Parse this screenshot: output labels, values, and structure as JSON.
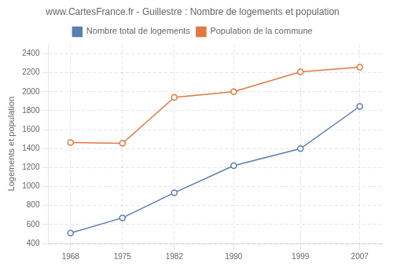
{
  "chart_data": {
    "type": "line",
    "title": "www.CartesFrance.fr - Guillestre : Nombre de logements et population",
    "y_label": "Logements et population",
    "x": [
      1968,
      1975,
      1982,
      1990,
      1999,
      2007
    ],
    "series": [
      {
        "name": "Nombre total de logements",
        "color": "#5b7db1",
        "marker": "circle",
        "values": [
          510,
          670,
          935,
          1220,
          1400,
          1845
        ]
      },
      {
        "name": "Population de la commune",
        "color": "#e07840",
        "marker": "circle",
        "values": [
          1465,
          1455,
          1940,
          2000,
          2210,
          2260
        ]
      }
    ],
    "xlim": [
      1965,
      2010
    ],
    "xticks": [
      1968,
      1975,
      1982,
      1990,
      1999,
      2007
    ],
    "ylim": [
      400,
      2500
    ],
    "yticks": [
      400,
      600,
      800,
      1000,
      1200,
      1400,
      1600,
      1800,
      2000,
      2200,
      2400
    ],
    "grid": true,
    "legend": "top"
  }
}
